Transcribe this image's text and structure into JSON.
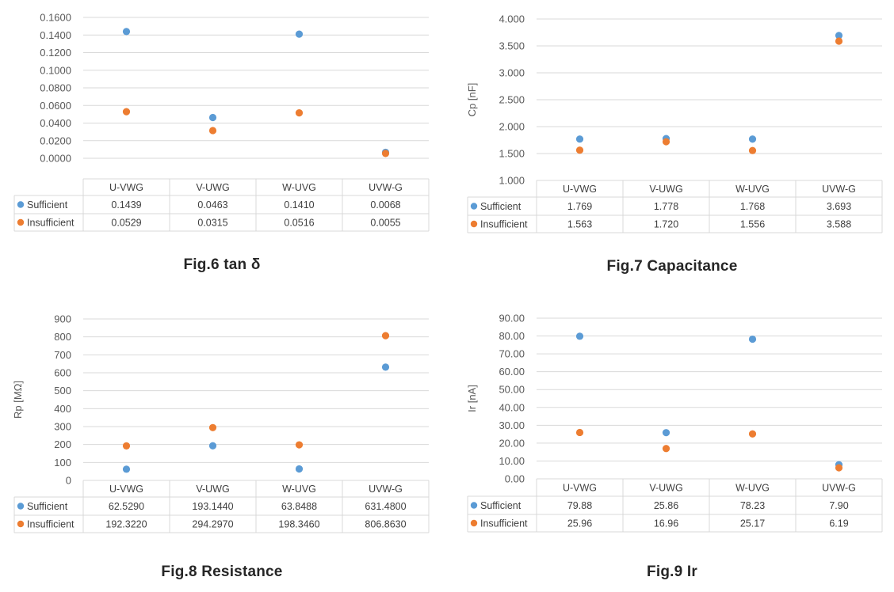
{
  "colors": {
    "sufficient": "#5b9bd5",
    "insufficient": "#ed7d31",
    "grid": "#d9d9d9"
  },
  "chart_data": [
    {
      "type": "scatter",
      "caption": "Fig.6  tan δ",
      "ylabel": "",
      "ylim": [
        0,
        0.16
      ],
      "yticks": [
        "0.0000",
        "0.0200",
        "0.0400",
        "0.0600",
        "0.0800",
        "0.1000",
        "0.1200",
        "0.1400",
        "0.1600"
      ],
      "categories": [
        "U-VWG",
        "V-UWG",
        "W-UVG",
        "UVW-G"
      ],
      "series": [
        {
          "name": "Sufficient",
          "values": [
            0.1439,
            0.0463,
            0.141,
            0.0068
          ],
          "labels": [
            "0.1439",
            "0.0463",
            "0.1410",
            "0.0068"
          ]
        },
        {
          "name": "Insufficient",
          "values": [
            0.0529,
            0.0315,
            0.0516,
            0.0055
          ],
          "labels": [
            "0.0529",
            "0.0315",
            "0.0516",
            "0.0055"
          ]
        }
      ]
    },
    {
      "type": "scatter",
      "caption": "Fig.7  Capacitance",
      "ylabel": "Cp [nF]",
      "ylim": [
        1.0,
        4.0
      ],
      "yticks": [
        "1.000",
        "1.500",
        "2.000",
        "2.500",
        "3.000",
        "3.500",
        "4.000"
      ],
      "categories": [
        "U-VWG",
        "V-UWG",
        "W-UVG",
        "UVW-G"
      ],
      "series": [
        {
          "name": "Sufficient",
          "values": [
            1.769,
            1.778,
            1.768,
            3.693
          ],
          "labels": [
            "1.769",
            "1.778",
            "1.768",
            "3.693"
          ]
        },
        {
          "name": "Insufficient",
          "values": [
            1.563,
            1.72,
            1.556,
            3.588
          ],
          "labels": [
            "1.563",
            "1.720",
            "1.556",
            "3.588"
          ]
        }
      ]
    },
    {
      "type": "scatter",
      "caption": "Fig.8  Resistance",
      "ylabel": "Rp [MΩ]",
      "ylim": [
        0,
        900
      ],
      "yticks": [
        "0",
        "100",
        "200",
        "300",
        "400",
        "500",
        "600",
        "700",
        "800",
        "900"
      ],
      "categories": [
        "U-VWG",
        "V-UWG",
        "W-UVG",
        "UVW-G"
      ],
      "series": [
        {
          "name": "Sufficient",
          "values": [
            62.529,
            193.144,
            63.8488,
            631.48
          ],
          "labels": [
            "62.5290",
            "193.1440",
            "63.8488",
            "631.4800"
          ]
        },
        {
          "name": "Insufficient",
          "values": [
            192.322,
            294.297,
            198.346,
            806.863
          ],
          "labels": [
            "192.3220",
            "294.2970",
            "198.3460",
            "806.8630"
          ]
        }
      ]
    },
    {
      "type": "scatter",
      "caption": "Fig.9  Ir",
      "ylabel": "Ir [nA]",
      "ylim": [
        0,
        90
      ],
      "yticks": [
        "0.00",
        "10.00",
        "20.00",
        "30.00",
        "40.00",
        "50.00",
        "60.00",
        "70.00",
        "80.00",
        "90.00"
      ],
      "categories": [
        "U-VWG",
        "V-UWG",
        "W-UVG",
        "UVW-G"
      ],
      "series": [
        {
          "name": "Sufficient",
          "values": [
            79.88,
            25.86,
            78.23,
            7.9
          ],
          "labels": [
            "79.88",
            "25.86",
            "78.23",
            "7.90"
          ]
        },
        {
          "name": "Insufficient",
          "values": [
            25.96,
            16.96,
            25.17,
            6.19
          ],
          "labels": [
            "25.96",
            "16.96",
            "25.17",
            "6.19"
          ]
        }
      ]
    }
  ]
}
